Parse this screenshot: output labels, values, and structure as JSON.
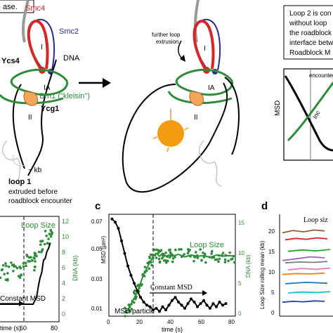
{
  "top_left_caption": "ase.",
  "labels": {
    "smc4": "Smc4",
    "smc2": "Smc2",
    "ycs4": "Ycs4",
    "dna": "DNA",
    "brn1": "Brn1 (\"kleisin\")",
    "ycg1": "Ycg1",
    "kb": "~ kb",
    "site_I": "I",
    "site_IA": "IA",
    "site_II": "II",
    "site_I_b": "I",
    "site_IA_b": "IA",
    "site_II_b": "II",
    "loop1_title": "loop 1",
    "loop1_line2": "extruded before",
    "loop1_line3": "roadblock encounter",
    "further_1": "further loop",
    "further_2": "extrusion"
  },
  "right_box": {
    "lines": [
      "Loop 2 is con",
      "without loop",
      "the roadblock",
      "interface betw",
      "Roadblock M"
    ]
  },
  "schematic": {
    "ylabel": "MSD",
    "encounter_label": "encounter",
    "curve_label": "Inc"
  },
  "colors": {
    "smc4": "#d62728",
    "smc2": "#2b2b8f",
    "kleisin": "#2e8b3a",
    "ycg1": "#f2a65a",
    "roadblock": "#f39c12",
    "msd": "#000000",
    "loop_size": "#2e8b3a"
  },
  "panel_c_letter": "c",
  "panel_d_letter": "d",
  "panel_b": {
    "loop_size_label": "Loop Size",
    "y2_label": "DNA (kb)",
    "y2_ticks": [
      "12",
      "10",
      "8",
      "6",
      "4",
      "2",
      "0"
    ],
    "x_ticks": [
      "60",
      "80"
    ],
    "xlabel": "time (s)",
    "constant_msd": "Constant MSD"
  },
  "panel_c": {
    "ylabel": "MSD (μm²)",
    "y_ticks": [
      "0.07",
      "0.05",
      "0.03",
      "0.01"
    ],
    "y2_label": "DNA (kb)",
    "y2_ticks": [
      "15",
      "10",
      "5",
      "0"
    ],
    "x_ticks": [
      "0",
      "20",
      "40",
      "60",
      "80"
    ],
    "xlabel": "time (s)",
    "loop_size_label": "Loop Size",
    "constant_msd": "Constant MSD",
    "msd_particle": "MSD particle"
  },
  "panel_d": {
    "title": "Loop siz",
    "ylabel": "Loop Size rolling mean (kb)",
    "y_ticks": [
      "20",
      "15",
      "10",
      "5",
      "0"
    ],
    "series_colors": [
      "#8b5e3c",
      "#d62728",
      "#2ca02c",
      "#9467bd",
      "#7f7f7f",
      "#e377c2",
      "#ff7f0e",
      "#1f77b4",
      "#17becf",
      "#1f3fb4"
    ]
  },
  "chart_data": [
    {
      "type": "scatter",
      "panel": "c",
      "xlabel": "time (s)",
      "ylabel": "MSD (μm²)",
      "y2label": "DNA (kb)",
      "xlim": [
        0,
        80
      ],
      "ylim": [
        0.01,
        0.075
      ],
      "y2lim": [
        0,
        17
      ],
      "event_time": 28,
      "series": [
        {
          "name": "MSD particle",
          "axis": "left",
          "x": [
            2,
            4,
            6,
            8,
            10,
            12,
            14,
            16,
            18,
            20,
            22,
            24,
            26,
            28,
            30,
            32,
            34,
            36,
            38,
            40,
            42,
            44,
            46,
            48,
            50,
            52,
            54,
            56,
            58,
            60,
            62,
            64,
            66,
            68,
            70,
            72,
            74
          ],
          "y": [
            0.072,
            0.07,
            0.066,
            0.058,
            0.05,
            0.042,
            0.036,
            0.031,
            0.026,
            0.022,
            0.019,
            0.017,
            0.016,
            0.014,
            0.015,
            0.013,
            0.016,
            0.014,
            0.017,
            0.02,
            0.022,
            0.019,
            0.017,
            0.015,
            0.018,
            0.021,
            0.019,
            0.016,
            0.018,
            0.02,
            0.017,
            0.015,
            0.018,
            0.016,
            0.019,
            0.017,
            0.018
          ]
        },
        {
          "name": "Loop Size",
          "axis": "right",
          "x": [
            10,
            12,
            14,
            16,
            18,
            20,
            22,
            24,
            26,
            28,
            30,
            32,
            34,
            36,
            38,
            40,
            44,
            48,
            52,
            56,
            60,
            64,
            68,
            72,
            76,
            80
          ],
          "y": [
            0.5,
            1,
            2,
            3,
            4,
            5.5,
            7,
            8,
            9,
            10,
            10.5,
            10,
            10.5,
            10,
            10.2,
            10,
            10.3,
            9.9,
            10.2,
            10,
            10.1,
            9.8,
            10.2,
            10,
            10.1,
            10
          ]
        }
      ]
    },
    {
      "type": "scatter",
      "panel": "b",
      "xlabel": "time (s)",
      "y2label": "DNA (kb)",
      "xlim": [
        20,
        90
      ],
      "y2lim": [
        0,
        12
      ],
      "event_time": 62,
      "series": [
        {
          "name": "Loop Size",
          "axis": "right",
          "x": [
            20,
            25,
            30,
            35,
            40,
            45,
            50,
            55,
            60,
            62,
            65,
            70,
            75,
            80,
            85
          ],
          "y": [
            5,
            6,
            5.5,
            6,
            6.5,
            6,
            6.5,
            7,
            6.5,
            7,
            8,
            9,
            9.5,
            10,
            10
          ]
        },
        {
          "name": "MSD",
          "axis": "left",
          "x": [
            20,
            30,
            40,
            50,
            60,
            62,
            64,
            66,
            68,
            70,
            72,
            74,
            76,
            78,
            80
          ],
          "y": [
            0.01,
            0.01,
            0.01,
            0.01,
            0.01,
            0.012,
            0.014,
            0.02,
            0.025,
            0.028,
            0.035,
            0.036,
            0.04,
            0.042,
            0.045
          ]
        }
      ]
    },
    {
      "type": "line",
      "panel": "d",
      "ylabel": "Loop Size rolling mean (kb)",
      "ylim": [
        0,
        22
      ],
      "series": [
        {
          "y": [
            18,
            18.5,
            18.2,
            18.6,
            18.4
          ]
        },
        {
          "y": [
            16.5,
            16.8,
            16.6,
            16.9,
            16.7
          ]
        },
        {
          "y": [
            14,
            14.3,
            14.1,
            14.4
          ]
        },
        {
          "y": [
            12,
            12.4,
            12.8,
            12.6
          ]
        },
        {
          "y": [
            11.5,
            11.7,
            11.6,
            11.8
          ]
        },
        {
          "y": [
            10,
            10.3,
            10.1,
            10.4
          ]
        },
        {
          "y": [
            9,
            9.2,
            9.1,
            9.3
          ]
        },
        {
          "y": [
            7,
            7.3,
            7.1
          ]
        },
        {
          "y": [
            5,
            5.2,
            5.1,
            5.3
          ]
        },
        {
          "y": [
            3,
            3.2,
            3.1,
            3.3,
            3.2
          ]
        }
      ]
    }
  ]
}
